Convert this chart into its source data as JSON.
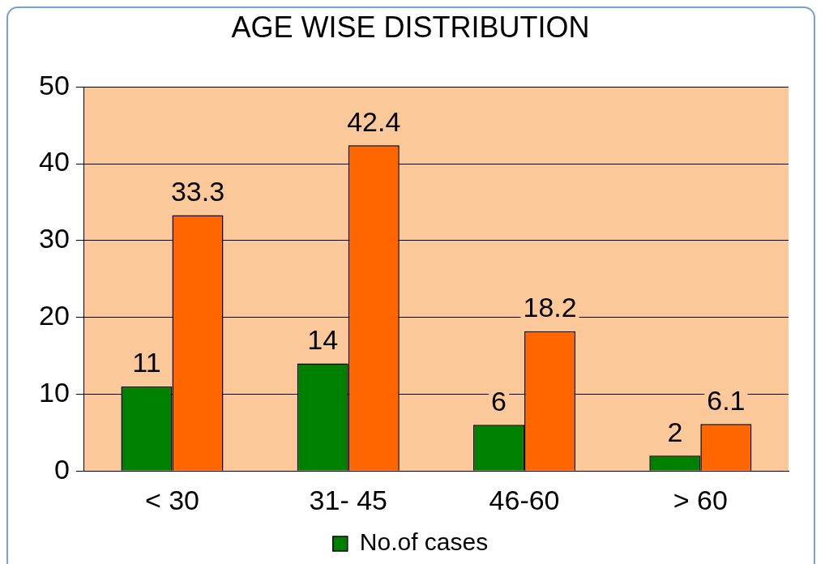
{
  "chart_data": {
    "type": "bar",
    "title": "AGE WISE DISTRIBUTION",
    "categories": [
      "< 30",
      "31- 45",
      "46-60",
      "> 60"
    ],
    "series": [
      {
        "name": "No.of cases",
        "color": "#008000",
        "values": [
          11,
          14,
          6,
          2
        ]
      },
      {
        "color": "#ff6600",
        "values": [
          33.3,
          42.4,
          18.2,
          6.1
        ]
      }
    ],
    "ylim": [
      0,
      50
    ],
    "yticks": [
      0,
      10,
      20,
      30,
      40,
      50
    ],
    "grid": "y",
    "legend": "bottom",
    "data_labels": true
  }
}
